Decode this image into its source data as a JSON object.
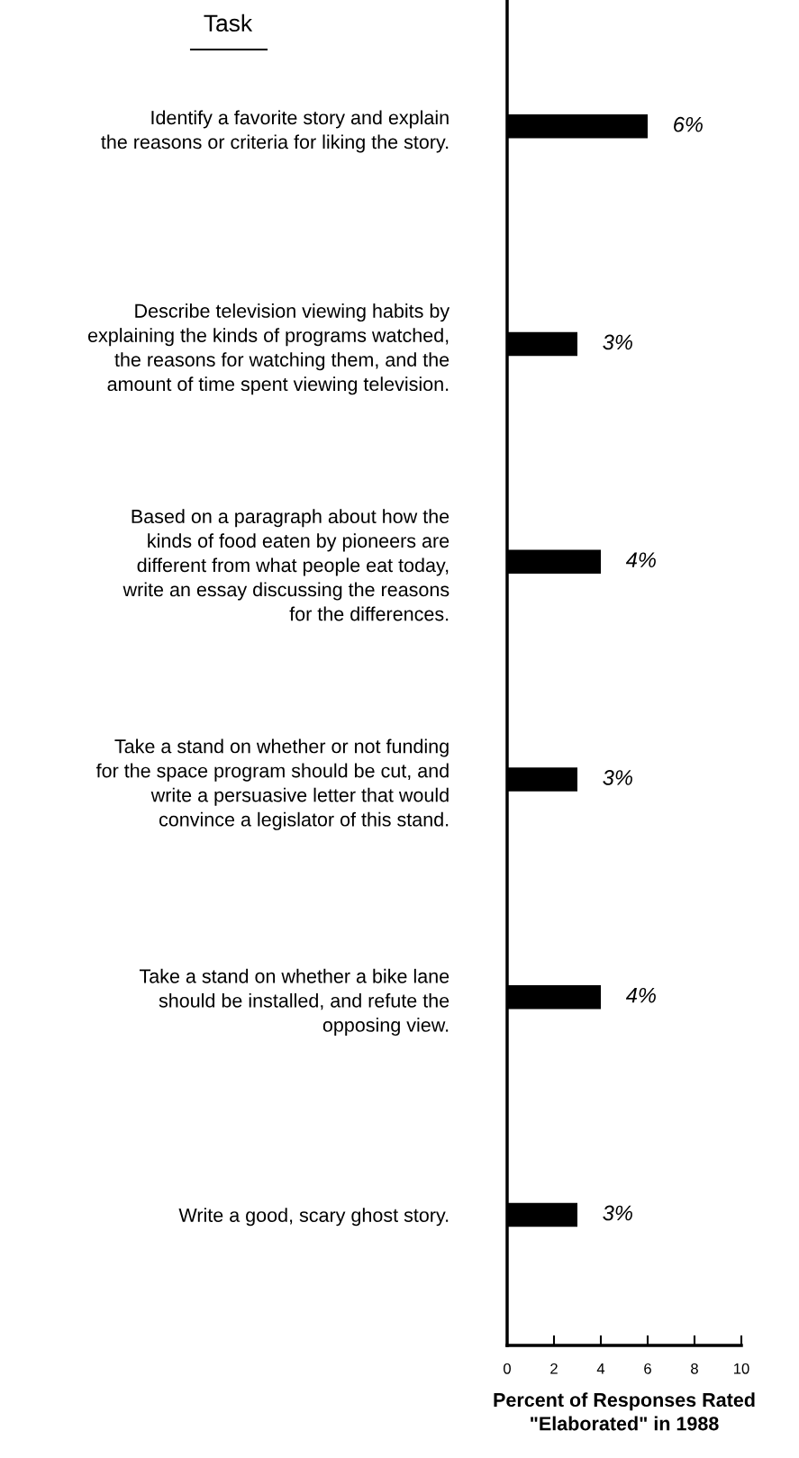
{
  "chart_data": {
    "type": "bar",
    "orientation": "horizontal",
    "ylabel": "Task",
    "xlabel": "Percent of Responses Rated\n\"Elaborated\" in 1988",
    "categories": [
      "Identify a favorite story and explain\nthe reasons or criteria for liking the story.",
      "Describe television viewing habits by\nexplaining the kinds of programs watched,\nthe reasons for watching them, and the\namount of time spent viewing television.",
      "Based on a paragraph about how the\nkinds of food eaten by pioneers are\ndifferent from what people eat today,\nwrite an essay discussing the reasons\nfor the differences.",
      "Take a stand on whether or not funding\nfor the space program should be cut, and\nwrite a persuasive letter that would\nconvince a legislator of this stand.",
      "Take a stand on whether a bike lane\nshould be installed, and refute the\nopposing view.",
      "Write a good, scary ghost story."
    ],
    "values": [
      6,
      3,
      4,
      3,
      4,
      3
    ],
    "value_labels": [
      "6%",
      "3%",
      "4%",
      "3%",
      "4%",
      "3%"
    ],
    "color": "#000000",
    "xlim": [
      0,
      10
    ],
    "xticks": [
      0,
      2,
      4,
      6,
      8,
      10
    ],
    "grid": false,
    "legend": false
  }
}
